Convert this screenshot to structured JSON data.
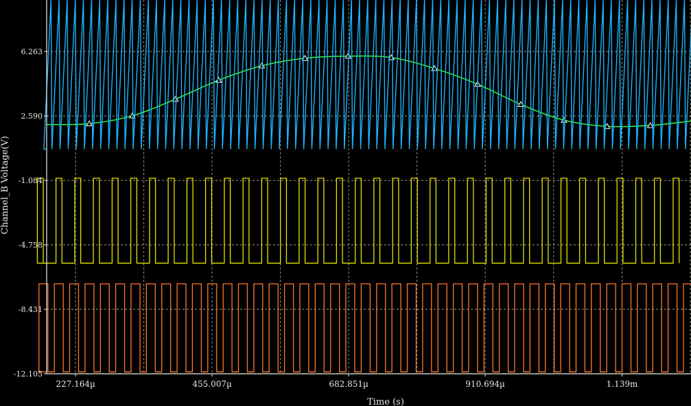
{
  "chart_data": {
    "type": "line",
    "title": "",
    "xlabel": "Time (s)",
    "ylabel": "Channel_B Voltage(V)",
    "xlim": [
      0.000179,
      0.001254
    ],
    "ylim": [
      -12.105,
      9.2
    ],
    "x_ticks": [
      {
        "value": 0.000227164,
        "label": "227.164µ"
      },
      {
        "value": 0.000455007,
        "label": "455.007µ"
      },
      {
        "value": 0.000682851,
        "label": "682.851µ"
      },
      {
        "value": 0.000910694,
        "label": "910.694µ"
      },
      {
        "value": 0.001139,
        "label": "1.139m"
      }
    ],
    "y_ticks": [
      {
        "value": 6.263,
        "label": "6.263"
      },
      {
        "value": 2.59,
        "label": "2.590"
      },
      {
        "value": -1.084,
        "label": "-1.084"
      },
      {
        "value": -4.758,
        "label": "-4.758"
      },
      {
        "value": -8.431,
        "label": "-8.431"
      },
      {
        "value": -12.105,
        "label": "-12.105"
      }
    ],
    "grid": true,
    "series": [
      {
        "kind": "sine",
        "color": "#33ff33",
        "marker": "triangle",
        "x": [
          0.000179,
          0.00025,
          0.000322,
          0.000394,
          0.000466,
          0.000538,
          0.00061,
          0.000682,
          0.000754,
          0.000826,
          0.000898,
          0.00097,
          0.001042,
          0.001114,
          0.001186,
          0.001254
        ],
        "values": [
          2.1,
          2.15,
          2.6,
          3.55,
          4.63,
          5.45,
          5.88,
          6.0,
          5.92,
          5.3,
          4.4,
          3.25,
          2.35,
          2.0,
          2.05,
          2.3
        ]
      },
      {
        "kind": "sawtooth",
        "color": "#1eb4ff",
        "period": 1.355e-05,
        "low": 0.7,
        "high": 9.2
      },
      {
        "kind": "square",
        "color": "#e6e600",
        "period": 3.12e-05,
        "duty": 0.32,
        "low": -5.8,
        "high": -0.96
      },
      {
        "kind": "square",
        "color": "#ff7a2a",
        "period": 2.56e-05,
        "duty": 0.58,
        "low": -12.0,
        "high": -6.98
      }
    ]
  }
}
